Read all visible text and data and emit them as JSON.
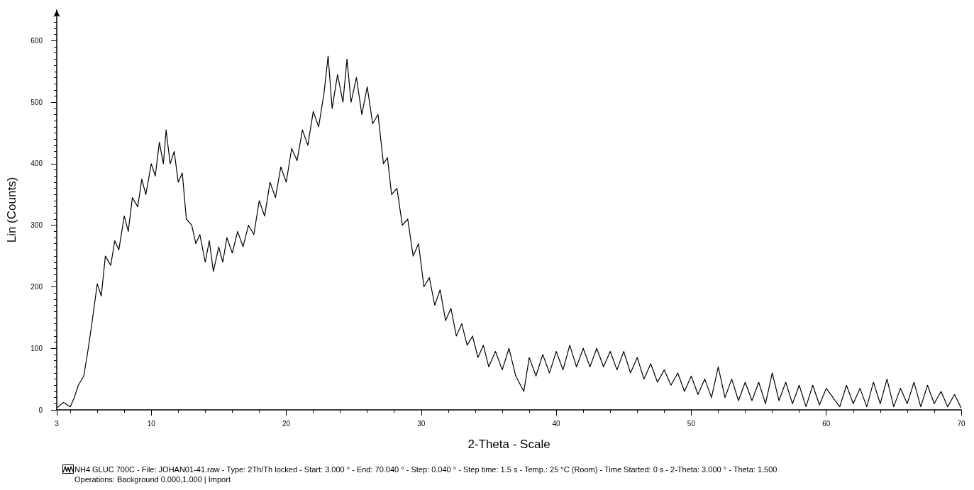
{
  "chart_data": {
    "type": "line",
    "xlabel": "2-Theta - Scale",
    "ylabel": "Lin (Counts)",
    "xlim": [
      3,
      70
    ],
    "xticks": [
      3,
      10,
      20,
      30,
      40,
      50,
      60,
      70
    ],
    "ylim": [
      0,
      650
    ],
    "yticks": [
      0,
      100,
      200,
      300,
      400,
      500,
      600
    ],
    "grid": false,
    "marker": "none",
    "line_style": "solid",
    "annotations": [
      "NH4 GLUC 700C - File: JOHAN01-41.raw - Type: 2Th/Th locked - Start: 3.000 ° - End: 70.040 ° - Step: 0.040 ° - Step time: 1.5 s - Temp.: 25 °C (Room) - Time Started: 0 s - 2-Theta: 3.000 ° - Theta: 1.500",
      "Operations: Background 0.000,1.000 | Import"
    ],
    "series": [
      {
        "color": "#000000",
        "x": [
          3,
          3.5,
          4,
          4.3,
          4.6,
          5,
          5.3,
          5.6,
          6,
          6.3,
          6.6,
          7,
          7.3,
          7.6,
          8,
          8.3,
          8.6,
          9,
          9.3,
          9.6,
          10,
          10.3,
          10.6,
          10.9,
          11.1,
          11.4,
          11.7,
          12,
          12.3,
          12.6,
          13,
          13.3,
          13.6,
          14,
          14.3,
          14.6,
          15,
          15.3,
          15.6,
          16,
          16.4,
          16.8,
          17.2,
          17.6,
          18,
          18.4,
          18.8,
          19.2,
          19.6,
          20,
          20.4,
          20.8,
          21.2,
          21.6,
          22,
          22.4,
          22.8,
          23.1,
          23.4,
          23.8,
          24.2,
          24.5,
          24.8,
          25.2,
          25.6,
          26,
          26.4,
          26.8,
          27.2,
          27.5,
          27.8,
          28.2,
          28.6,
          29,
          29.4,
          29.8,
          30.2,
          30.6,
          31,
          31.4,
          31.8,
          32.2,
          32.6,
          33,
          33.4,
          33.8,
          34.2,
          34.6,
          35,
          35.5,
          36,
          36.5,
          37,
          37.6,
          38,
          38.5,
          39,
          39.5,
          40,
          40.5,
          41,
          41.5,
          42,
          42.5,
          43,
          43.5,
          44,
          44.5,
          45,
          45.5,
          46,
          46.5,
          47,
          47.5,
          48,
          48.5,
          49,
          49.5,
          50,
          50.5,
          51,
          51.5,
          52,
          52.5,
          53,
          53.5,
          54,
          54.5,
          55,
          55.5,
          56,
          56.5,
          57,
          57.5,
          58,
          58.5,
          59,
          59.5,
          60,
          61,
          61.5,
          62,
          62.5,
          63,
          63.5,
          64,
          64.5,
          65,
          65.5,
          66,
          66.5,
          67,
          67.5,
          68,
          68.5,
          69,
          69.5,
          70
        ],
        "values": [
          3,
          12,
          5,
          20,
          40,
          55,
          95,
          140,
          205,
          185,
          250,
          235,
          275,
          260,
          315,
          290,
          345,
          330,
          375,
          350,
          400,
          380,
          435,
          400,
          455,
          400,
          420,
          370,
          385,
          310,
          300,
          270,
          285,
          240,
          275,
          225,
          265,
          240,
          280,
          255,
          290,
          265,
          300,
          285,
          340,
          315,
          370,
          345,
          395,
          370,
          425,
          405,
          455,
          430,
          485,
          460,
          515,
          575,
          490,
          545,
          500,
          570,
          500,
          540,
          480,
          525,
          465,
          480,
          400,
          410,
          350,
          360,
          300,
          310,
          250,
          270,
          200,
          215,
          170,
          195,
          145,
          165,
          120,
          140,
          105,
          120,
          85,
          105,
          70,
          95,
          65,
          100,
          55,
          30,
          85,
          55,
          90,
          60,
          95,
          65,
          105,
          70,
          100,
          70,
          100,
          70,
          95,
          65,
          95,
          60,
          85,
          50,
          75,
          45,
          65,
          40,
          60,
          30,
          55,
          25,
          50,
          20,
          70,
          20,
          50,
          15,
          45,
          15,
          45,
          10,
          60,
          15,
          45,
          10,
          40,
          5,
          40,
          8,
          35,
          5,
          40,
          10,
          35,
          5,
          45,
          10,
          50,
          5,
          35,
          10,
          45,
          5,
          40,
          10,
          30,
          5,
          25,
          3
        ]
      }
    ]
  }
}
